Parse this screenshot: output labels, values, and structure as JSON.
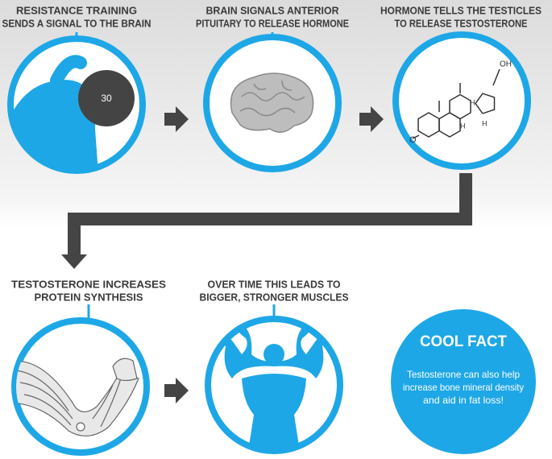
{
  "steps": [
    {
      "caption": [
        "RESISTANCE TRAINING",
        "SENDS A SIGNAL TO THE BRAIN"
      ]
    },
    {
      "caption": [
        "BRAIN SIGNALS ANTERIOR",
        "PITUITARY TO RELEASE HORMONE"
      ]
    },
    {
      "caption": [
        "HORMONE TELLS THE TESTICLES",
        "TO RELEASE TESTOSTERONE"
      ]
    },
    {
      "caption": [
        "TESTOSTERONE INCREASES",
        "PROTEIN SYNTHESIS"
      ]
    },
    {
      "caption": [
        "OVER TIME THIS LEADS TO",
        "BIGGER, STRONGER MUSCLES"
      ]
    }
  ],
  "dumbbell_weight": "30",
  "molecule_labels": {
    "hydroxyl": "OH",
    "hydrogens": [
      "H",
      "H",
      "H"
    ],
    "ketone": "O"
  },
  "cool_fact": {
    "title": "COOL FACT",
    "text": [
      "Testosterone can also help",
      "increase bone mineral density",
      "and aid in fat loss!"
    ]
  }
}
